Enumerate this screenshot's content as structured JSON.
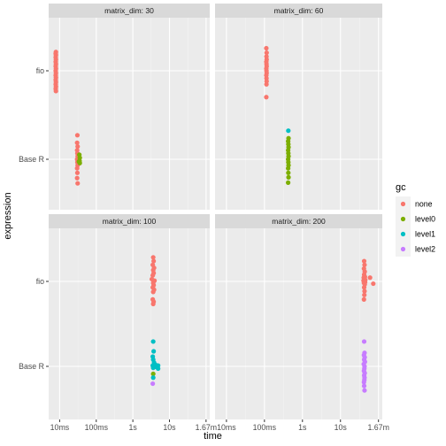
{
  "chart_data": {
    "type": "scatter",
    "xlabel": "time",
    "ylabel": "expression",
    "x_scale": "log10",
    "x_ticks": [
      "10ms",
      "100ms",
      "1s",
      "10s",
      "1.67m"
    ],
    "x_tick_values_seconds": [
      0.01,
      0.1,
      1,
      10,
      100
    ],
    "x_range_seconds": [
      0.00501,
      126
    ],
    "y_categories": [
      "Base R",
      "fio"
    ],
    "legend": {
      "title": "gc",
      "position": "right",
      "entries": [
        "none",
        "level0",
        "level1",
        "level2"
      ]
    },
    "colors": {
      "none": "#F8766D",
      "level0": "#7CAE00",
      "level1": "#00BFC4",
      "level2": "#C77CFF"
    },
    "grid": true,
    "panels": [
      {
        "strip": "matrix_dim: 30",
        "points": [
          {
            "expression": "fio",
            "gc": "none",
            "time": 0.0079,
            "y": 0.25
          },
          {
            "expression": "fio",
            "gc": "none",
            "time": 0.0078,
            "y": 0.23
          },
          {
            "expression": "fio",
            "gc": "none",
            "time": 0.0079,
            "y": 0.21
          },
          {
            "expression": "fio",
            "gc": "none",
            "time": 0.0078,
            "y": 0.18
          },
          {
            "expression": "fio",
            "gc": "none",
            "time": 0.0079,
            "y": 0.15
          },
          {
            "expression": "fio",
            "gc": "none",
            "time": 0.0078,
            "y": 0.12
          },
          {
            "expression": "fio",
            "gc": "none",
            "time": 0.0079,
            "y": 0.09
          },
          {
            "expression": "fio",
            "gc": "none",
            "time": 0.0078,
            "y": 0.06
          },
          {
            "expression": "fio",
            "gc": "none",
            "time": 0.0079,
            "y": 0.03
          },
          {
            "expression": "fio",
            "gc": "none",
            "time": 0.0078,
            "y": 0.0
          },
          {
            "expression": "fio",
            "gc": "none",
            "time": 0.0079,
            "y": -0.03
          },
          {
            "expression": "fio",
            "gc": "none",
            "time": 0.0078,
            "y": -0.06
          },
          {
            "expression": "fio",
            "gc": "none",
            "time": 0.0079,
            "y": -0.09
          },
          {
            "expression": "fio",
            "gc": "none",
            "time": 0.0078,
            "y": -0.12
          },
          {
            "expression": "fio",
            "gc": "none",
            "time": 0.0079,
            "y": -0.15
          },
          {
            "expression": "fio",
            "gc": "none",
            "time": 0.0078,
            "y": -0.18
          },
          {
            "expression": "fio",
            "gc": "none",
            "time": 0.0079,
            "y": -0.21
          },
          {
            "expression": "fio",
            "gc": "none",
            "time": 0.0078,
            "y": -0.24
          },
          {
            "expression": "fio",
            "gc": "none",
            "time": 0.0079,
            "y": -0.27
          },
          {
            "expression": "Base R",
            "gc": "none",
            "time": 0.0305,
            "y": 0.32
          },
          {
            "expression": "Base R",
            "gc": "none",
            "time": 0.03,
            "y": 0.22
          },
          {
            "expression": "Base R",
            "gc": "none",
            "time": 0.031,
            "y": 0.17
          },
          {
            "expression": "Base R",
            "gc": "none",
            "time": 0.03,
            "y": 0.12
          },
          {
            "expression": "Base R",
            "gc": "none",
            "time": 0.0305,
            "y": 0.08
          },
          {
            "expression": "Base R",
            "gc": "none",
            "time": 0.031,
            "y": 0.04
          },
          {
            "expression": "Base R",
            "gc": "none",
            "time": 0.03,
            "y": 0.0
          },
          {
            "expression": "Base R",
            "gc": "none",
            "time": 0.0305,
            "y": -0.04
          },
          {
            "expression": "Base R",
            "gc": "none",
            "time": 0.031,
            "y": -0.08
          },
          {
            "expression": "Base R",
            "gc": "none",
            "time": 0.03,
            "y": -0.12
          },
          {
            "expression": "Base R",
            "gc": "none",
            "time": 0.0305,
            "y": -0.18
          },
          {
            "expression": "Base R",
            "gc": "none",
            "time": 0.03,
            "y": -0.25
          },
          {
            "expression": "Base R",
            "gc": "none",
            "time": 0.031,
            "y": -0.32
          },
          {
            "expression": "Base R",
            "gc": "level0",
            "time": 0.0345,
            "y": 0.06
          },
          {
            "expression": "Base R",
            "gc": "level0",
            "time": 0.0355,
            "y": 0.02
          },
          {
            "expression": "Base R",
            "gc": "level0",
            "time": 0.035,
            "y": -0.02
          },
          {
            "expression": "Base R",
            "gc": "level0",
            "time": 0.0355,
            "y": -0.05
          },
          {
            "expression": "Base R",
            "gc": "level0",
            "time": 0.0335,
            "y": -0.03
          }
        ]
      },
      {
        "strip": "matrix_dim: 60",
        "points": [
          {
            "expression": "fio",
            "gc": "none",
            "time": 0.112,
            "y": 0.3
          },
          {
            "expression": "fio",
            "gc": "none",
            "time": 0.114,
            "y": 0.24
          },
          {
            "expression": "fio",
            "gc": "none",
            "time": 0.113,
            "y": 0.19
          },
          {
            "expression": "fio",
            "gc": "none",
            "time": 0.114,
            "y": 0.15
          },
          {
            "expression": "fio",
            "gc": "none",
            "time": 0.112,
            "y": 0.12
          },
          {
            "expression": "fio",
            "gc": "none",
            "time": 0.113,
            "y": 0.09
          },
          {
            "expression": "fio",
            "gc": "none",
            "time": 0.114,
            "y": 0.06
          },
          {
            "expression": "fio",
            "gc": "none",
            "time": 0.112,
            "y": 0.03
          },
          {
            "expression": "fio",
            "gc": "none",
            "time": 0.113,
            "y": 0.0
          },
          {
            "expression": "fio",
            "gc": "none",
            "time": 0.114,
            "y": -0.03
          },
          {
            "expression": "fio",
            "gc": "none",
            "time": 0.112,
            "y": -0.06
          },
          {
            "expression": "fio",
            "gc": "none",
            "time": 0.113,
            "y": -0.1
          },
          {
            "expression": "fio",
            "gc": "none",
            "time": 0.114,
            "y": -0.14
          },
          {
            "expression": "fio",
            "gc": "none",
            "time": 0.113,
            "y": -0.18
          },
          {
            "expression": "fio",
            "gc": "none",
            "time": 0.112,
            "y": -0.35
          },
          {
            "expression": "Base R",
            "gc": "level1",
            "time": 0.425,
            "y": 0.38
          },
          {
            "expression": "Base R",
            "gc": "level0",
            "time": 0.43,
            "y": 0.28
          },
          {
            "expression": "Base R",
            "gc": "level0",
            "time": 0.42,
            "y": 0.24
          },
          {
            "expression": "Base R",
            "gc": "level0",
            "time": 0.425,
            "y": 0.2
          },
          {
            "expression": "Base R",
            "gc": "level0",
            "time": 0.43,
            "y": 0.16
          },
          {
            "expression": "Base R",
            "gc": "level0",
            "time": 0.42,
            "y": 0.12
          },
          {
            "expression": "Base R",
            "gc": "level0",
            "time": 0.425,
            "y": 0.08
          },
          {
            "expression": "Base R",
            "gc": "level0",
            "time": 0.43,
            "y": 0.04
          },
          {
            "expression": "Base R",
            "gc": "level0",
            "time": 0.42,
            "y": 0.0
          },
          {
            "expression": "Base R",
            "gc": "level0",
            "time": 0.425,
            "y": -0.04
          },
          {
            "expression": "Base R",
            "gc": "level0",
            "time": 0.43,
            "y": -0.08
          },
          {
            "expression": "Base R",
            "gc": "level0",
            "time": 0.42,
            "y": -0.12
          },
          {
            "expression": "Base R",
            "gc": "level0",
            "time": 0.425,
            "y": -0.18
          },
          {
            "expression": "Base R",
            "gc": "level0",
            "time": 0.43,
            "y": -0.24
          },
          {
            "expression": "Base R",
            "gc": "level0",
            "time": 0.42,
            "y": -0.31
          }
        ]
      },
      {
        "strip": "matrix_dim: 100",
        "points": [
          {
            "expression": "fio",
            "gc": "none",
            "time": 3.6,
            "y": 0.32
          },
          {
            "expression": "fio",
            "gc": "none",
            "time": 3.7,
            "y": 0.27
          },
          {
            "expression": "fio",
            "gc": "none",
            "time": 3.5,
            "y": 0.22
          },
          {
            "expression": "fio",
            "gc": "none",
            "time": 3.8,
            "y": 0.18
          },
          {
            "expression": "fio",
            "gc": "none",
            "time": 3.6,
            "y": 0.15
          },
          {
            "expression": "fio",
            "gc": "none",
            "time": 3.7,
            "y": 0.11
          },
          {
            "expression": "fio",
            "gc": "none",
            "time": 3.5,
            "y": 0.08
          },
          {
            "expression": "fio",
            "gc": "none",
            "time": 3.3,
            "y": 0.03
          },
          {
            "expression": "fio",
            "gc": "none",
            "time": 3.9,
            "y": 0.01
          },
          {
            "expression": "fio",
            "gc": "none",
            "time": 3.6,
            "y": -0.02
          },
          {
            "expression": "fio",
            "gc": "none",
            "time": 3.7,
            "y": -0.05
          },
          {
            "expression": "fio",
            "gc": "none",
            "time": 3.5,
            "y": -0.08
          },
          {
            "expression": "fio",
            "gc": "none",
            "time": 3.8,
            "y": -0.11
          },
          {
            "expression": "fio",
            "gc": "none",
            "time": 3.6,
            "y": -0.14
          },
          {
            "expression": "fio",
            "gc": "none",
            "time": 3.5,
            "y": -0.24
          },
          {
            "expression": "fio",
            "gc": "none",
            "time": 3.7,
            "y": -0.27
          },
          {
            "expression": "fio",
            "gc": "none",
            "time": 3.6,
            "y": -0.3
          },
          {
            "expression": "Base R",
            "gc": "level1",
            "time": 3.6,
            "y": 0.33
          },
          {
            "expression": "Base R",
            "gc": "level1",
            "time": 3.7,
            "y": 0.2
          },
          {
            "expression": "Base R",
            "gc": "level1",
            "time": 3.5,
            "y": 0.13
          },
          {
            "expression": "Base R",
            "gc": "level1",
            "time": 3.6,
            "y": 0.09
          },
          {
            "expression": "Base R",
            "gc": "level1",
            "time": 3.8,
            "y": 0.05
          },
          {
            "expression": "Base R",
            "gc": "level1",
            "time": 4.2,
            "y": 0.02
          },
          {
            "expression": "Base R",
            "gc": "level1",
            "time": 4.9,
            "y": 0.01
          },
          {
            "expression": "Base R",
            "gc": "level1",
            "time": 3.5,
            "y": 0.01
          },
          {
            "expression": "Base R",
            "gc": "level1",
            "time": 3.9,
            "y": 0.0
          },
          {
            "expression": "Base R",
            "gc": "level1",
            "time": 4.5,
            "y": -0.01
          },
          {
            "expression": "Base R",
            "gc": "level1",
            "time": 3.6,
            "y": -0.02
          },
          {
            "expression": "Base R",
            "gc": "level1",
            "time": 4.9,
            "y": -0.03
          },
          {
            "expression": "Base R",
            "gc": "level0",
            "time": 3.6,
            "y": -0.1
          },
          {
            "expression": "Base R",
            "gc": "level1",
            "time": 3.6,
            "y": -0.15
          },
          {
            "expression": "Base R",
            "gc": "level2",
            "time": 3.5,
            "y": -0.23
          }
        ]
      },
      {
        "strip": "matrix_dim: 200",
        "points": [
          {
            "expression": "fio",
            "gc": "none",
            "time": 42.0,
            "y": 0.27
          },
          {
            "expression": "fio",
            "gc": "none",
            "time": 43.0,
            "y": 0.22
          },
          {
            "expression": "fio",
            "gc": "none",
            "time": 41.5,
            "y": 0.17
          },
          {
            "expression": "fio",
            "gc": "none",
            "time": 43.5,
            "y": 0.13
          },
          {
            "expression": "fio",
            "gc": "none",
            "time": 42.0,
            "y": 0.09
          },
          {
            "expression": "fio",
            "gc": "none",
            "time": 44.0,
            "y": 0.06
          },
          {
            "expression": "fio",
            "gc": "none",
            "time": 41.0,
            "y": 0.05
          },
          {
            "expression": "fio",
            "gc": "none",
            "time": 43.0,
            "y": 0.03
          },
          {
            "expression": "fio",
            "gc": "none",
            "time": 45.0,
            "y": 0.02
          },
          {
            "expression": "fio",
            "gc": "none",
            "time": 40.5,
            "y": 0.01
          },
          {
            "expression": "fio",
            "gc": "none",
            "time": 42.5,
            "y": 0.0
          },
          {
            "expression": "fio",
            "gc": "none",
            "time": 44.5,
            "y": -0.01
          },
          {
            "expression": "fio",
            "gc": "none",
            "time": 41.5,
            "y": -0.02
          },
          {
            "expression": "fio",
            "gc": "none",
            "time": 43.5,
            "y": -0.04
          },
          {
            "expression": "fio",
            "gc": "none",
            "time": 42.0,
            "y": -0.08
          },
          {
            "expression": "fio",
            "gc": "none",
            "time": 43.0,
            "y": -0.13
          },
          {
            "expression": "fio",
            "gc": "none",
            "time": 42.5,
            "y": -0.18
          },
          {
            "expression": "fio",
            "gc": "none",
            "time": 41.5,
            "y": -0.24
          },
          {
            "expression": "fio",
            "gc": "none",
            "time": 60.0,
            "y": 0.05
          },
          {
            "expression": "fio",
            "gc": "none",
            "time": 73.0,
            "y": -0.03
          },
          {
            "expression": "Base R",
            "gc": "level2",
            "time": 42.0,
            "y": 0.33
          },
          {
            "expression": "Base R",
            "gc": "level2",
            "time": 43.0,
            "y": 0.18
          },
          {
            "expression": "Base R",
            "gc": "level2",
            "time": 41.5,
            "y": 0.15
          },
          {
            "expression": "Base R",
            "gc": "level2",
            "time": 43.5,
            "y": 0.12
          },
          {
            "expression": "Base R",
            "gc": "level2",
            "time": 42.0,
            "y": 0.09
          },
          {
            "expression": "Base R",
            "gc": "level2",
            "time": 44.0,
            "y": 0.06
          },
          {
            "expression": "Base R",
            "gc": "level2",
            "time": 41.0,
            "y": 0.03
          },
          {
            "expression": "Base R",
            "gc": "level2",
            "time": 43.0,
            "y": 0.0
          },
          {
            "expression": "Base R",
            "gc": "level2",
            "time": 42.5,
            "y": -0.03
          },
          {
            "expression": "Base R",
            "gc": "level2",
            "time": 41.5,
            "y": -0.06
          },
          {
            "expression": "Base R",
            "gc": "level2",
            "time": 43.5,
            "y": -0.09
          },
          {
            "expression": "Base R",
            "gc": "level2",
            "time": 42.0,
            "y": -0.12
          },
          {
            "expression": "Base R",
            "gc": "level2",
            "time": 43.0,
            "y": -0.15
          },
          {
            "expression": "Base R",
            "gc": "level2",
            "time": 42.5,
            "y": -0.18
          },
          {
            "expression": "Base R",
            "gc": "level2",
            "time": 41.5,
            "y": -0.21
          },
          {
            "expression": "Base R",
            "gc": "level2",
            "time": 42.0,
            "y": -0.26
          },
          {
            "expression": "Base R",
            "gc": "level2",
            "time": 43.0,
            "y": -0.32
          }
        ]
      }
    ]
  }
}
